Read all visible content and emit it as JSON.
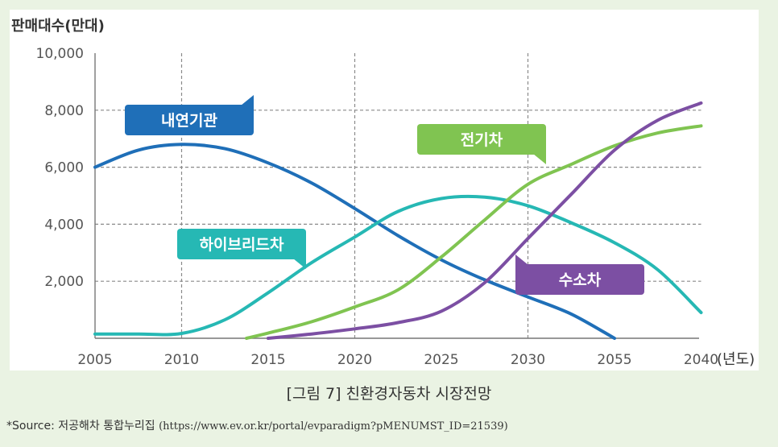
{
  "chart_data": {
    "type": "line",
    "ylabel": "판매대수(만대)",
    "xunit": "(년도)",
    "ylim": [
      0,
      10000
    ],
    "yticks": [
      "10,000",
      "8,000",
      "6,000",
      "4,000",
      "2,000"
    ],
    "categories": [
      "2005",
      "2010",
      "2015",
      "2020",
      "2025",
      "2030",
      "2055",
      "2040"
    ],
    "grid": true,
    "series": [
      {
        "name": "내연기관",
        "color": "#1f6fb8",
        "points": [
          [
            0.0,
            6000
          ],
          [
            0.5,
            6600
          ],
          [
            1.0,
            6800
          ],
          [
            1.5,
            6650
          ],
          [
            2.0,
            6150
          ],
          [
            2.5,
            5450
          ],
          [
            3.0,
            4550
          ],
          [
            3.5,
            3600
          ],
          [
            4.0,
            2750
          ],
          [
            4.5,
            2050
          ],
          [
            5.0,
            1450
          ],
          [
            5.5,
            850
          ],
          [
            6.0,
            0
          ]
        ]
      },
      {
        "name": "하이브리드차",
        "color": "#26b8b4",
        "points": [
          [
            0.0,
            150
          ],
          [
            0.5,
            150
          ],
          [
            1.0,
            170
          ],
          [
            1.5,
            650
          ],
          [
            2.0,
            1600
          ],
          [
            2.5,
            2650
          ],
          [
            3.0,
            3550
          ],
          [
            3.5,
            4450
          ],
          [
            4.0,
            4900
          ],
          [
            4.5,
            4950
          ],
          [
            5.0,
            4650
          ],
          [
            5.5,
            4050
          ],
          [
            6.0,
            3350
          ],
          [
            6.5,
            2400
          ],
          [
            7.0,
            900
          ]
        ]
      },
      {
        "name": "전기차",
        "color": "#80c451",
        "points": [
          [
            1.75,
            0
          ],
          [
            2.0,
            180
          ],
          [
            2.5,
            580
          ],
          [
            3.0,
            1100
          ],
          [
            3.5,
            1700
          ],
          [
            4.0,
            2850
          ],
          [
            4.5,
            4150
          ],
          [
            5.0,
            5400
          ],
          [
            5.5,
            6100
          ],
          [
            6.0,
            6750
          ],
          [
            6.5,
            7200
          ],
          [
            7.0,
            7450
          ]
        ]
      },
      {
        "name": "수소차",
        "color": "#7c4fa3",
        "points": [
          [
            2.0,
            0
          ],
          [
            2.5,
            150
          ],
          [
            3.0,
            330
          ],
          [
            3.5,
            550
          ],
          [
            4.0,
            950
          ],
          [
            4.5,
            1950
          ],
          [
            5.0,
            3500
          ],
          [
            5.5,
            5050
          ],
          [
            6.0,
            6600
          ],
          [
            6.5,
            7650
          ],
          [
            7.0,
            8250
          ]
        ]
      }
    ]
  },
  "caption": "[그림 7] 친환경자동차 시장전망",
  "source": {
    "prefix": "*Source: 저공해차 통합누리집",
    "url": "(https://www.ev.or.kr/portal/evparadigm?pMENUMST_ID=21539)"
  }
}
